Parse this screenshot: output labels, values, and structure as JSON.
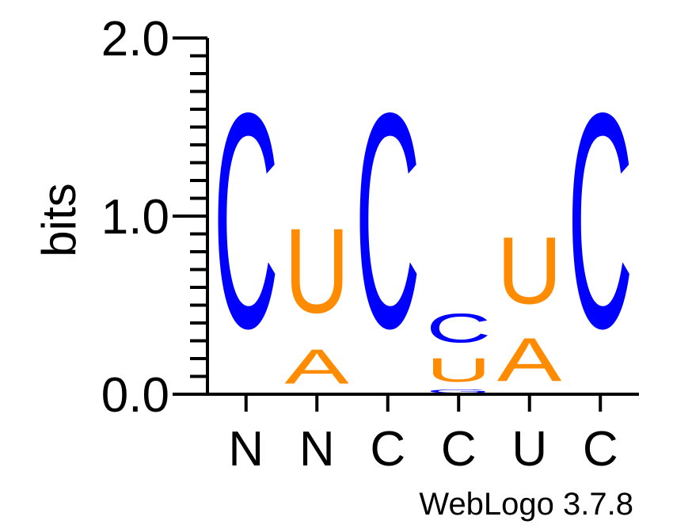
{
  "chart_data": {
    "type": "sequence-logo",
    "ylabel": "bits",
    "ylim": [
      0,
      2.0
    ],
    "y_ticks": [
      "0.0",
      "1.0",
      "2.0"
    ],
    "positions": [
      {
        "label": "N",
        "stack": [
          {
            "letter": "C",
            "bits": 1.93,
            "color": "#0000ff"
          }
        ]
      },
      {
        "label": "N",
        "stack": [
          {
            "letter": "A",
            "bits": 0.31,
            "color": "#ff8c00"
          },
          {
            "letter": "U",
            "bits": 0.76,
            "color": "#ff8c00"
          }
        ]
      },
      {
        "label": "C",
        "stack": [
          {
            "letter": "C",
            "bits": 1.93,
            "color": "#0000ff"
          }
        ]
      },
      {
        "label": "C",
        "stack": [
          {
            "letter": "G",
            "bits": 0.03,
            "color": "#0000ff"
          },
          {
            "letter": "U",
            "bits": 0.21,
            "color": "#ff8c00"
          },
          {
            "letter": "C",
            "bits": 0.26,
            "color": "#0000ff"
          }
        ]
      },
      {
        "label": "U",
        "stack": [
          {
            "letter": "A",
            "bits": 0.39,
            "color": "#ff8c00"
          },
          {
            "letter": "U",
            "bits": 0.6,
            "color": "#ff8c00"
          }
        ]
      },
      {
        "label": "C",
        "stack": [
          {
            "letter": "C",
            "bits": 1.93,
            "color": "#0000ff"
          }
        ]
      }
    ],
    "footer": "WebLogo 3.7.8"
  }
}
